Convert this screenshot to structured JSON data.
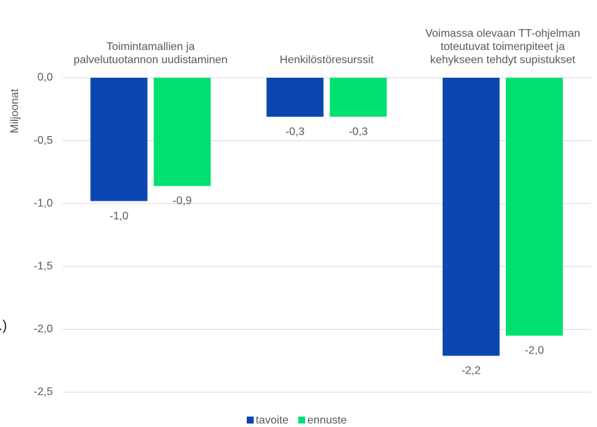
{
  "chart_data": {
    "type": "bar",
    "y_axis_label": "Miljoonat",
    "annotation": ".)",
    "categories": [
      "Toimintamallien ja palvelutuotannon uudistaminen",
      "Henkilöstöresurssit",
      "Voimassa olevaan TT-ohjelman toteutuvat toimenpiteet ja kehykseen tehdyt supistukset"
    ],
    "series": [
      {
        "name": "tavoite",
        "color": "#0a47b0",
        "values": [
          -0.98,
          -0.31,
          -2.21
        ],
        "value_labels": [
          "-1,0",
          "-0,3",
          "-2,2"
        ]
      },
      {
        "name": "ennuste",
        "color": "#00e070",
        "values": [
          -0.86,
          -0.31,
          -2.05
        ],
        "value_labels": [
          "-0,9",
          "-0,3",
          "-2,0"
        ]
      }
    ],
    "ylim": [
      0,
      -2.5
    ],
    "yticks": [
      {
        "value": 0,
        "label": "0,0"
      },
      {
        "value": -0.5,
        "label": "-0,5"
      },
      {
        "value": -1,
        "label": "-1,0"
      },
      {
        "value": -1.5,
        "label": "-1,5"
      },
      {
        "value": -2,
        "label": "-2,0"
      },
      {
        "value": -2.5,
        "label": "-2,5"
      }
    ],
    "grid": true,
    "legend": "bottom"
  }
}
